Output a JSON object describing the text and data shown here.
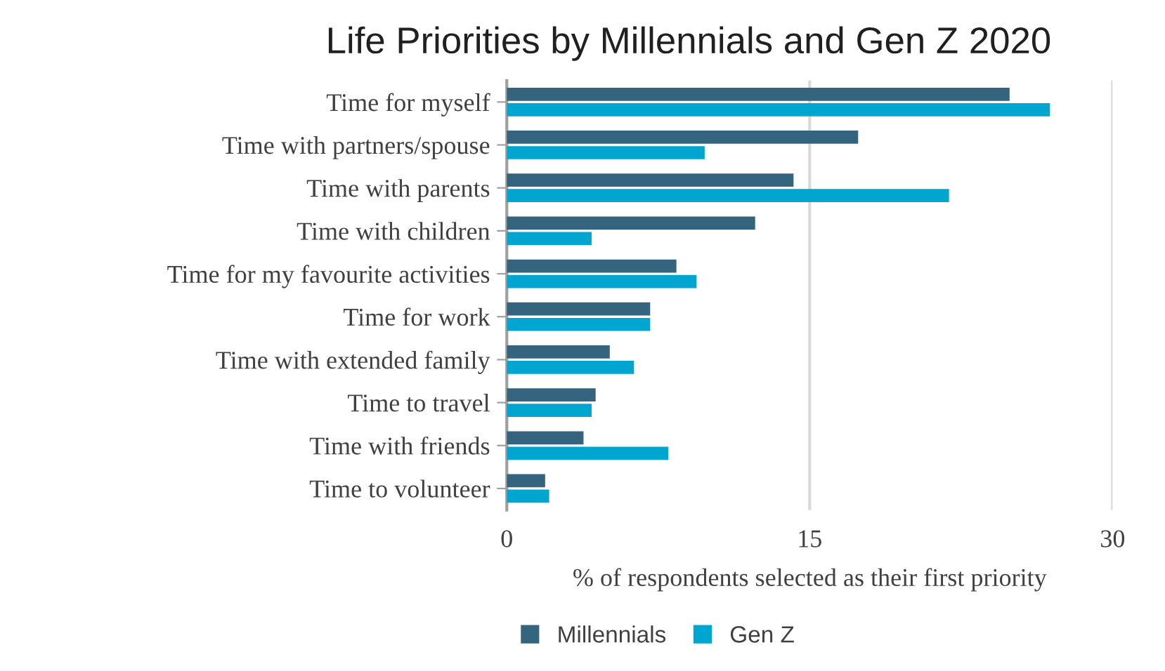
{
  "chart_data": {
    "type": "bar",
    "orientation": "horizontal",
    "title": "Life Priorities by Millennials and Gen Z 2020",
    "xlabel": "% of respondents selected as their first priority",
    "categories": [
      "Time for myself",
      "Time with partners/spouse",
      "Time with parents",
      "Time with children",
      "Time for my favourite activities",
      "Time for work",
      "Time with extended family",
      "Time to travel",
      "Time with friends",
      "Time to volunteer"
    ],
    "series": [
      {
        "name": "Millennials",
        "color": "#35647e",
        "values": [
          24.9,
          17.4,
          14.2,
          12.3,
          8.4,
          7.1,
          5.1,
          4.4,
          3.8,
          1.9
        ]
      },
      {
        "name": "Gen Z",
        "color": "#00a6cf",
        "values": [
          26.9,
          9.8,
          21.9,
          4.2,
          9.4,
          7.1,
          6.3,
          4.2,
          8.0,
          2.1
        ]
      }
    ],
    "xlim": [
      0,
      30
    ],
    "xticks": [
      0,
      15,
      30
    ],
    "grid": "x",
    "legend": "bottom"
  }
}
